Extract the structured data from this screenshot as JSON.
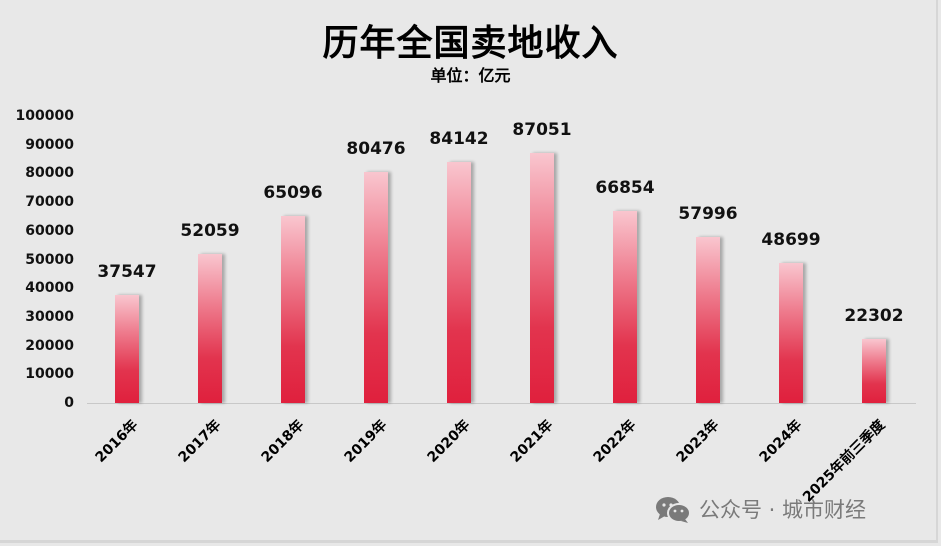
{
  "title": "历年全国卖地收入",
  "subtitle": "单位：亿元",
  "watermark": {
    "icon": "wechat-icon",
    "text": "公众号 · 城市财经"
  },
  "y_axis": {
    "ticks": [
      "100000",
      "90000",
      "80000",
      "70000",
      "60000",
      "50000",
      "40000",
      "30000",
      "20000",
      "10000",
      "0"
    ]
  },
  "colors": {
    "bar_top": "#f9c6cf",
    "bar_bottom": "#e0203d",
    "background": "#e8e8e8"
  },
  "bars": [
    {
      "label": "2016年",
      "value": "37547"
    },
    {
      "label": "2017年",
      "value": "52059"
    },
    {
      "label": "2018年",
      "value": "65096"
    },
    {
      "label": "2019年",
      "value": "80476"
    },
    {
      "label": "2020年",
      "value": "84142"
    },
    {
      "label": "2021年",
      "value": "87051"
    },
    {
      "label": "2022年",
      "value": "66854"
    },
    {
      "label": "2023年",
      "value": "57996"
    },
    {
      "label": "2024年",
      "value": "48699"
    },
    {
      "label": "2025年前三季度",
      "value": "22302"
    }
  ],
  "chart_data": {
    "type": "bar",
    "title": "历年全国卖地收入",
    "subtitle": "单位：亿元",
    "categories": [
      "2016年",
      "2017年",
      "2018年",
      "2019年",
      "2020年",
      "2021年",
      "2022年",
      "2023年",
      "2024年",
      "2025年前三季度"
    ],
    "values": [
      37547,
      52059,
      65096,
      80476,
      84142,
      87051,
      66854,
      57996,
      48699,
      22302
    ],
    "xlabel": "",
    "ylabel": "亿元",
    "ylim": [
      0,
      100000
    ],
    "yticks": [
      0,
      10000,
      20000,
      30000,
      40000,
      50000,
      60000,
      70000,
      80000,
      90000,
      100000
    ],
    "grid": false,
    "legend": "none",
    "data_labels": true
  }
}
